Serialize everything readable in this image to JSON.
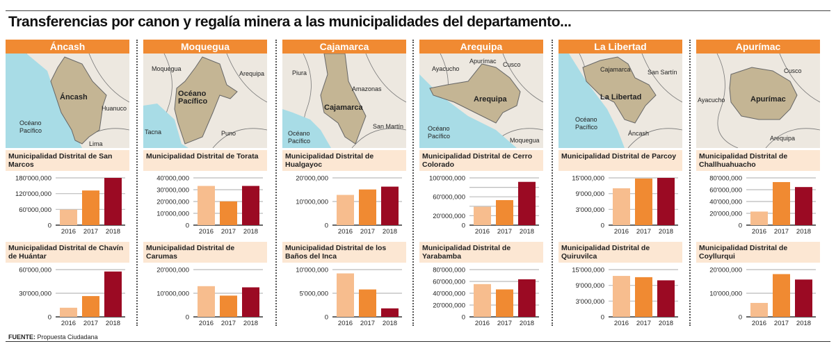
{
  "title": "Transferencias por canon y regalía minera a las municipalidades del departamento...",
  "source_label": "FUENTE:",
  "source_text": "Propuesta Ciudadana",
  "colors": {
    "header": "#f08a32",
    "bar_2016": "#f7bd8e",
    "bar_2017": "#f08a32",
    "bar_2018": "#9b0a23",
    "ocean": "#a8dce6",
    "land": "#ede8e0",
    "region": "#c4b594"
  },
  "chart_data": [
    {
      "type": "bar",
      "department": "Áncash",
      "map_labels": [
        "Áncash",
        "Huanuco",
        "Océano Pacífico",
        "Lima"
      ],
      "charts": [
        {
          "title": "Municipalidad Distrital de San Marcos",
          "categories": [
            "2016",
            "2017",
            "2018"
          ],
          "values": [
            59000000,
            132000000,
            180000000
          ],
          "yticks": [
            "180'000,000",
            "120'000,000",
            "60'000,000",
            "0"
          ],
          "ylim": [
            0,
            180000000
          ]
        },
        {
          "title": "Municipalidad Distrital de Chavín de Huántar",
          "categories": [
            "2016",
            "2017",
            "2018"
          ],
          "values": [
            11600000,
            26400000,
            57600000
          ],
          "yticks": [
            "60'000,000",
            "30'000,000",
            "0"
          ],
          "ylim": [
            0,
            60000000
          ]
        }
      ]
    },
    {
      "type": "bar",
      "department": "Moquegua",
      "map_labels": [
        "Moquegua",
        "Arequipa",
        "Puno",
        "Tacna",
        "Océano Pacífico"
      ],
      "charts": [
        {
          "title": "Municipalidad Distrital de Torata",
          "categories": [
            "2016",
            "2017",
            "2018"
          ],
          "values": [
            33200000,
            20100000,
            33200000
          ],
          "yticks": [
            "40'000,000",
            "30'000,000",
            "20'000,000",
            "10'000,000",
            "0"
          ],
          "ylim": [
            0,
            40000000
          ]
        },
        {
          "title": "Municipalidad Distrital de Carumas",
          "categories": [
            "2016",
            "2017",
            "2018"
          ],
          "values": [
            13000000,
            9000000,
            12500000
          ],
          "yticks": [
            "20'000,000",
            "10'000,000",
            "0"
          ],
          "ylim": [
            0,
            20000000
          ]
        }
      ]
    },
    {
      "type": "bar",
      "department": "Cajamarca",
      "map_labels": [
        "Cajamarca",
        "Piura",
        "Amazonas",
        "San Martín",
        "Océano Pacífico"
      ],
      "charts": [
        {
          "title": "Municipalidad Distrital de Hualgayoc",
          "categories": [
            "2016",
            "2017",
            "2018"
          ],
          "values": [
            12800000,
            15100000,
            16300000
          ],
          "yticks": [
            "20'000,000",
            "10'000,000",
            "0"
          ],
          "ylim": [
            0,
            20000000
          ]
        },
        {
          "title": "Municipalidad Distrital de los Baños del Inca",
          "categories": [
            "2016",
            "2017",
            "2018"
          ],
          "values": [
            9200000,
            5800000,
            1800000
          ],
          "yticks": [
            "10'000,000",
            "5'000,000",
            "0"
          ],
          "ylim": [
            0,
            10000000
          ]
        }
      ]
    },
    {
      "type": "bar",
      "department": "Arequipa",
      "map_labels": [
        "Arequipa",
        "Ayacucho",
        "Apurímac",
        "Cusco",
        "Océano Pacífico",
        "Moquegua"
      ],
      "charts": [
        {
          "title": "Municipalidad Distrital de Cerro Colorado",
          "categories": [
            "2016",
            "2017",
            "2018"
          ],
          "values": [
            39000000,
            53000000,
            91600000
          ],
          "yticks": [
            "100'000,000",
            "",
            "60'000,000",
            "",
            "20'000,000",
            "0"
          ],
          "ylim": [
            0,
            100000000
          ]
        },
        {
          "title": "Municipalidad Distrital de Yarabamba",
          "categories": [
            "2016",
            "2017",
            "2018"
          ],
          "values": [
            55500000,
            46500000,
            63600000
          ],
          "yticks": [
            "80'000,000",
            "60'000,000",
            "40'000,000",
            "20'000,000",
            "0"
          ],
          "ylim": [
            0,
            80000000
          ]
        }
      ]
    },
    {
      "type": "bar",
      "department": "La Libertad",
      "map_labels": [
        "La Libertad",
        "Cajamarca",
        "San Sartín",
        "Océano Pacífico",
        "Áncash"
      ],
      "charts": [
        {
          "title": "Municipalidad Distrital de Parcoy",
          "categories": [
            "2016",
            "2017",
            "2018"
          ],
          "values": [
            11700000,
            14800000,
            15000000
          ],
          "yticks": [
            "15'000,000",
            "9'000,000",
            "3'000,000",
            "0"
          ],
          "ylim": [
            0,
            15000000
          ]
        },
        {
          "title": "Municipalidad Distrital de Quiruvilca",
          "categories": [
            "2016",
            "2017",
            "2018"
          ],
          "values": [
            13000000,
            12600000,
            11600000
          ],
          "yticks": [
            "15'000,000",
            "9'000,000",
            "3'000,000",
            "0"
          ],
          "ylim": [
            0,
            15000000
          ]
        }
      ]
    },
    {
      "type": "bar",
      "department": "Apurímac",
      "map_labels": [
        "Apurímac",
        "Cusco",
        "Ayacucho",
        "Arequipa"
      ],
      "charts": [
        {
          "title": "Municipalidad Distrital de Challhuahuacho",
          "categories": [
            "2016",
            "2017",
            "2018"
          ],
          "values": [
            23000000,
            72900000,
            64500000
          ],
          "yticks": [
            "80'000,000",
            "60'000,000",
            "40'000,000",
            "20'000,000",
            "0"
          ],
          "ylim": [
            0,
            80000000
          ]
        },
        {
          "title": "Municipalidad Distrital de Coyllurqui",
          "categories": [
            "2016",
            "2017",
            "2018"
          ],
          "values": [
            5900000,
            18100000,
            15800000
          ],
          "yticks": [
            "20'000,000",
            "10'000,000",
            "0"
          ],
          "ylim": [
            0,
            20000000
          ]
        }
      ]
    }
  ]
}
